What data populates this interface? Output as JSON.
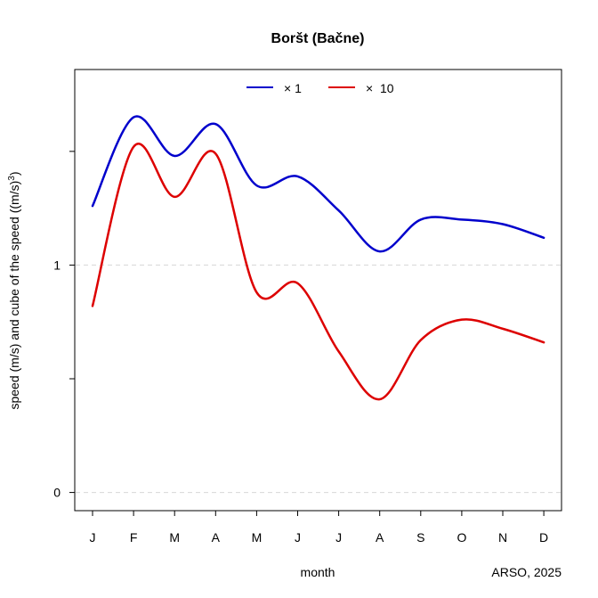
{
  "chart_data": {
    "type": "line",
    "title": "Boršt (Bačne)",
    "xlabel": "month",
    "ylabel": "speed (m/s) and cube of the speed ((m/s)",
    "ylabel_sup": "3",
    "ylabel_end": ")",
    "credit": "ARSO, 2025",
    "categories": [
      "J",
      "F",
      "M",
      "A",
      "M",
      "J",
      "J",
      "A",
      "S",
      "O",
      "N",
      "D"
    ],
    "ylim": [
      -0.08,
      1.86
    ],
    "yticks": [
      0,
      0.5,
      1,
      1.5
    ],
    "ytick_labels": [
      "0",
      "",
      "1",
      ""
    ],
    "grid_y": [
      0,
      1
    ],
    "legend_position": "top",
    "series": [
      {
        "name": "× 1",
        "color": "#0000cc",
        "values": [
          1.26,
          1.65,
          1.48,
          1.62,
          1.35,
          1.39,
          1.24,
          1.06,
          1.2,
          1.2,
          1.18,
          1.12
        ]
      },
      {
        "name": "×  10",
        "color": "#dd0000",
        "values": [
          0.82,
          1.52,
          1.3,
          1.49,
          0.88,
          0.92,
          0.62,
          0.41,
          0.67,
          0.76,
          0.72,
          0.66
        ]
      }
    ]
  }
}
